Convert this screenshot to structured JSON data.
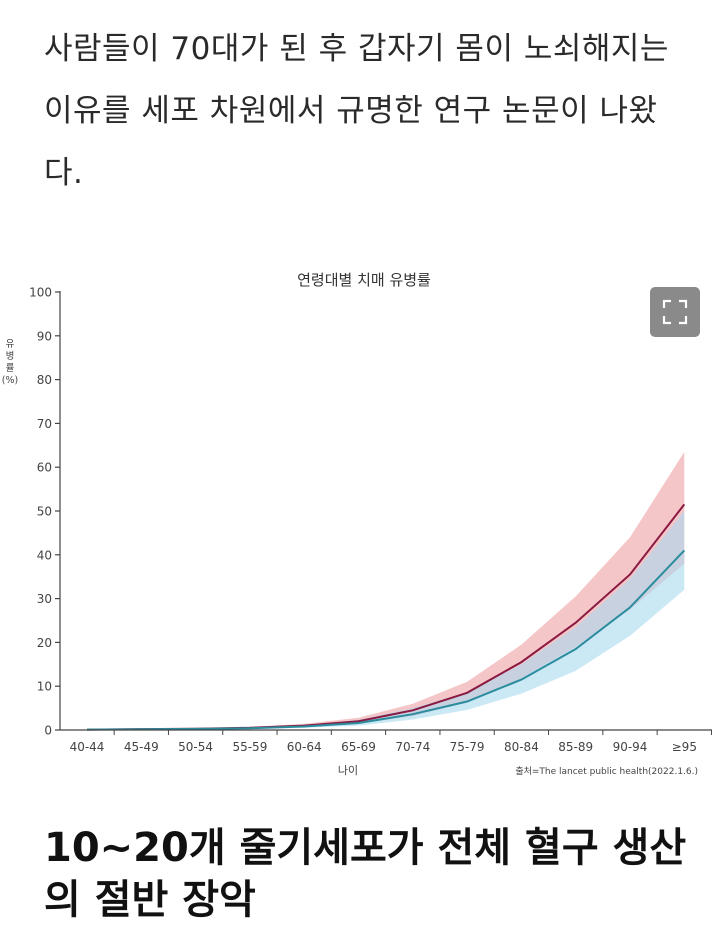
{
  "article": {
    "intro_text": "사람들이 70대가 된 후 갑자기 몸이 노쇠해지는 이유를 세포 차원에서 규명한 연구 논문이 나왔다.",
    "section_heading": "10~20개 줄기세포가 전체 혈구 생산의 절반 장악"
  },
  "toolbar": {
    "expand_icon": "fullscreen-icon"
  },
  "chart_data": {
    "type": "line",
    "title": "연령대별 치매 유병률",
    "xlabel": "나이",
    "ylabel": "유병률 (%)",
    "source": "출처=The lancet public health(2022.1.6.)",
    "categories": [
      "40-44",
      "45-49",
      "50-54",
      "55-59",
      "60-64",
      "65-69",
      "70-74",
      "75-79",
      "80-84",
      "85-89",
      "90-94",
      "≥95"
    ],
    "yticks": [
      0,
      10,
      20,
      30,
      40,
      50,
      60,
      70,
      80,
      90,
      100
    ],
    "ylim": [
      0,
      100
    ],
    "grid": false,
    "series": [
      {
        "values": [
          0.1,
          0.2,
          0.3,
          0.5,
          1.0,
          2.0,
          4.5,
          8.5,
          15.5,
          24.5,
          35.5,
          51.5
        ],
        "lower": [
          0.05,
          0.1,
          0.2,
          0.35,
          0.7,
          1.4,
          3.2,
          6.3,
          11.8,
          19.0,
          27.5,
          38.0
        ],
        "upper": [
          0.2,
          0.35,
          0.45,
          0.7,
          1.4,
          2.8,
          6.0,
          11.0,
          19.5,
          30.5,
          44.0,
          63.5
        ],
        "color": "#8b1a42",
        "band_color": "#f1b3b6"
      },
      {
        "values": [
          0.1,
          0.15,
          0.25,
          0.4,
          0.8,
          1.6,
          3.6,
          6.5,
          11.5,
          18.5,
          28.0,
          41.0
        ],
        "lower": [
          0.05,
          0.1,
          0.15,
          0.3,
          0.5,
          1.0,
          2.4,
          4.6,
          8.3,
          13.5,
          21.5,
          32.0
        ],
        "upper": [
          0.15,
          0.25,
          0.35,
          0.55,
          1.1,
          2.3,
          5.0,
          8.6,
          15.0,
          23.5,
          34.5,
          50.0
        ],
        "color": "#2b8c9e",
        "band_color": "#a9d8ee"
      }
    ]
  }
}
